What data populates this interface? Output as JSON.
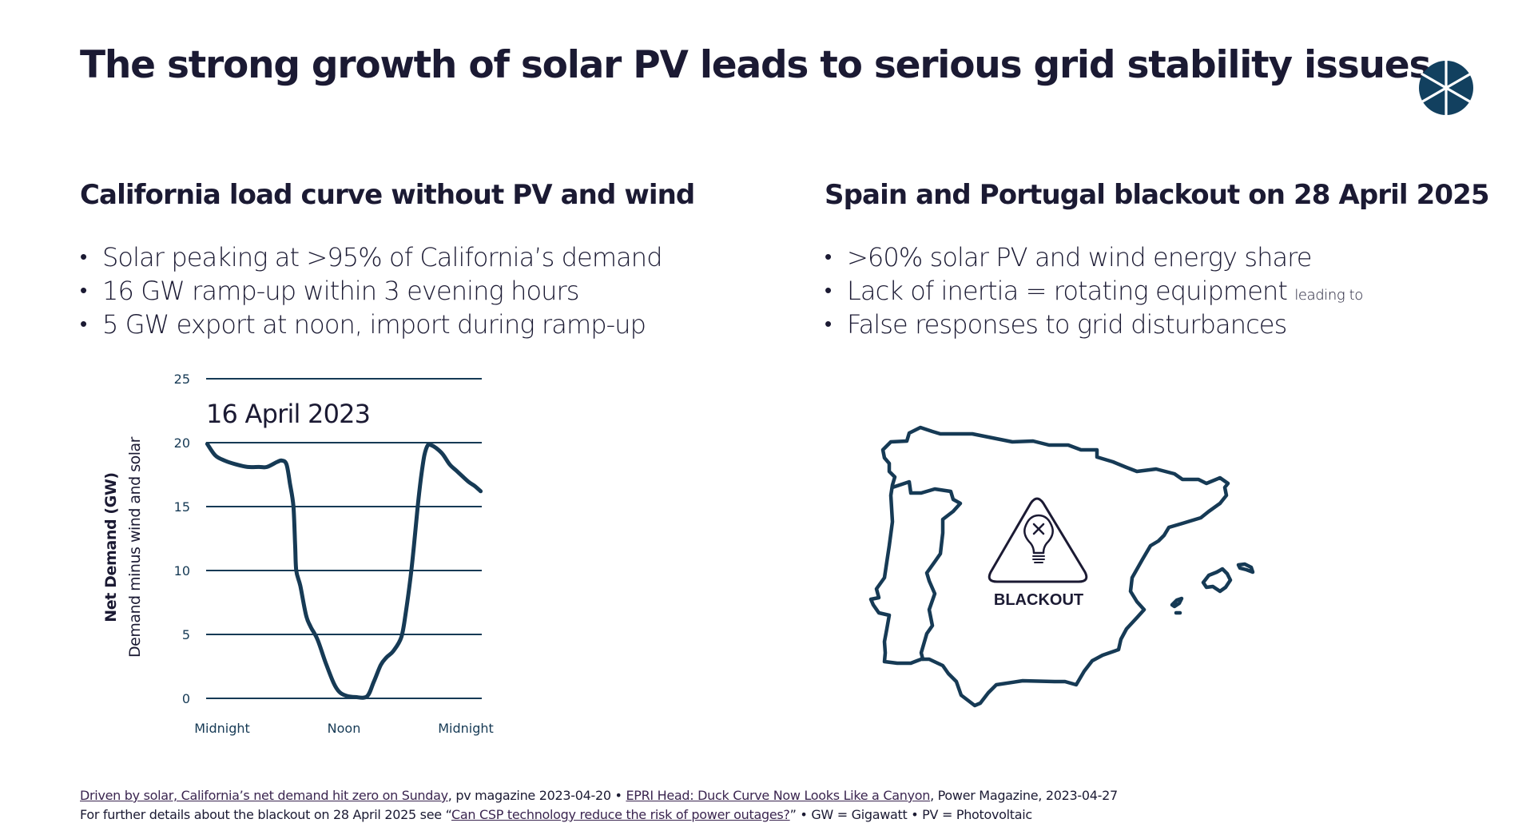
{
  "header": {
    "title": "The strong growth of solar PV leads to serious grid stability issues",
    "logo_icon": "segmented-circle-logo-icon"
  },
  "left": {
    "title": "California load curve without PV and wind",
    "bullets": [
      "Solar peaking at >95% of California’s demand",
      "16 GW ramp-up within 3 evening hours",
      "5 GW export at noon, import during ramp-up"
    ]
  },
  "right": {
    "title": "Spain and Portugal blackout on 28 April 2025",
    "bullets": [
      ">60% solar PV and wind energy share",
      "Lack of inertia = rotating equipment",
      "False responses to grid disturbances"
    ],
    "bullet2_suffix": "leading to",
    "map_label": "BLACKOUT",
    "map_icon": "blackout-warning-bulb-icon"
  },
  "chart_data": {
    "type": "line",
    "title": "16 April 2023",
    "xlabel": "",
    "ylabel": "Net Demand (GW)",
    "ylabel_sub": "Demand minus wind and solar",
    "xlim": [
      0,
      24
    ],
    "ylim": [
      0,
      25
    ],
    "yticks": [
      0,
      5,
      10,
      15,
      20,
      25
    ],
    "xtick_labels": [
      {
        "x": 0,
        "label": "Midnight"
      },
      {
        "x": 12,
        "label": "Noon"
      },
      {
        "x": 24,
        "label": "Midnight"
      }
    ],
    "grid": true,
    "series": [
      {
        "name": "Net demand",
        "color": "#163a55",
        "x": [
          0.1,
          0.8,
          1.6,
          2.6,
          3.6,
          4.6,
          5.3,
          6.2,
          6.6,
          7.0,
          7.3,
          7.6,
          7.75,
          7.85,
          8.2,
          8.7,
          9.1,
          9.7,
          10.4,
          11.1,
          11.6,
          12.2,
          13.0,
          14.0,
          14.6,
          15.2,
          15.7,
          16.3,
          17.0,
          17.4,
          17.8,
          18.1,
          18.4,
          18.7,
          19.0,
          19.3,
          19.6,
          20.0,
          20.6,
          21.2,
          21.8,
          22.4,
          22.9,
          23.4,
          23.9
        ],
        "y": [
          19.9,
          19.0,
          18.6,
          18.3,
          18.1,
          18.1,
          18.1,
          18.5,
          18.6,
          18.3,
          16.8,
          15.0,
          12.0,
          10.0,
          8.8,
          6.5,
          5.6,
          4.6,
          2.8,
          1.2,
          0.5,
          0.2,
          0.1,
          0.15,
          1.3,
          2.6,
          3.2,
          3.7,
          4.8,
          6.8,
          9.5,
          12.0,
          14.8,
          17.2,
          19.0,
          19.8,
          19.8,
          19.6,
          19.1,
          18.3,
          17.8,
          17.3,
          16.9,
          16.6,
          16.2
        ]
      }
    ]
  },
  "footer": {
    "line1": [
      {
        "type": "link",
        "text": "Driven by solar, California’s net demand hit zero on Sunday"
      },
      {
        "type": "text",
        "text": ", pv magazine 2023-04-20 • "
      },
      {
        "type": "link",
        "text": "EPRI Head: Duck Curve Now Looks Like a Canyon"
      },
      {
        "type": "text",
        "text": ", Power Magazine, 2023-04-27"
      }
    ],
    "line2": [
      {
        "type": "text",
        "text": "For further details about the blackout on 28 April 2025 see “"
      },
      {
        "type": "link",
        "text": "Can CSP technology reduce the risk of power outages?"
      },
      {
        "type": "text",
        "text": "” • GW = Gigawatt • PV = Photovoltaic"
      }
    ]
  },
  "colors": {
    "title": "#1b1a33",
    "accent": "#163a55",
    "link": "#3b2650"
  }
}
